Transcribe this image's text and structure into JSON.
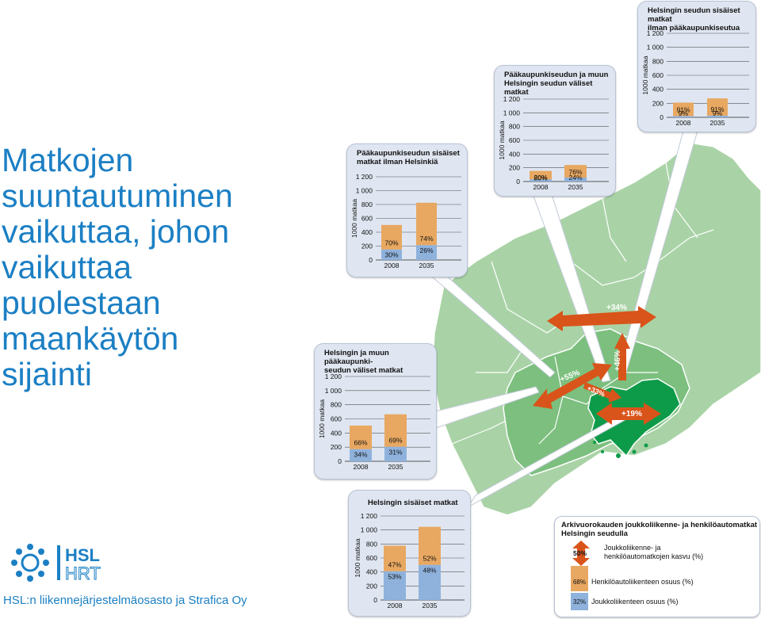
{
  "title": "Matkojen\nsuuntautuminen\nvaikuttaa, johon\nvaikuttaa\npuolestaan\nmaankäytön\nsijainti",
  "footer": "HSL:n liikennejärjestelmäosasto ja Strafica Oy",
  "logo": {
    "line1": "HSL",
    "line2": "HRT"
  },
  "colors": {
    "orange": "#e8a861",
    "blue": "#8fb2dc",
    "arrow": "#d9541a",
    "map_light": "#a9d3a6",
    "map_mid": "#7cbf7e",
    "map_dark": "#0e9b49",
    "title_blue": "#1b7fc4"
  },
  "arrows": [
    {
      "label": "+34%"
    },
    {
      "label": "+46%"
    },
    {
      "label": "+55%"
    },
    {
      "label": "+33%"
    },
    {
      "label": "+19%"
    }
  ],
  "chart_data": [
    {
      "id": "seutu-sisaiset",
      "type": "bar",
      "title": "Helsingin seudun sisäiset matkat\nilman pääkaupunkiseutua",
      "ylabel": "1000 matkaa",
      "yticks": [
        "0",
        "200",
        "400",
        "600",
        "800",
        "1 000",
        "1 200"
      ],
      "ylim": [
        0,
        1200
      ],
      "categories": [
        "2008",
        "2035"
      ],
      "totals": [
        210,
        270
      ],
      "series": [
        {
          "name": "Henkilöautoliikenteen osuus (%)",
          "share": [
            0.91,
            0.91
          ],
          "labels": [
            "91%",
            "91%"
          ]
        },
        {
          "name": "Joukkoliikenteen osuus (%)",
          "share": [
            0.09,
            0.09
          ],
          "labels": [
            "9%",
            "9%"
          ]
        }
      ]
    },
    {
      "id": "paakaupunkiseutu-muu-seutu",
      "type": "bar",
      "title": "Pääkaupunkiseudun ja muun\nHelsingin seudun väliset matkat",
      "ylabel": "1000 matkaa",
      "yticks": [
        "0",
        "200",
        "400",
        "600",
        "800",
        "1 000",
        "1 200"
      ],
      "ylim": [
        0,
        1200
      ],
      "categories": [
        "2008",
        "2035"
      ],
      "totals": [
        155,
        240
      ],
      "series": [
        {
          "name": "Henkilöautoliikenteen osuus (%)",
          "share": [
            0.8,
            0.76
          ],
          "labels": [
            "80%",
            "76%"
          ]
        },
        {
          "name": "Joukkoliikenteen osuus (%)",
          "share": [
            0.2,
            0.24
          ],
          "labels": [
            "20%",
            "24%"
          ]
        }
      ]
    },
    {
      "id": "paakaupunkiseutu-ilman-helsinkia",
      "type": "bar",
      "title": "Pääkaupunkiseudun sisäiset\nmatkat ilman Helsinkiä",
      "ylabel": "1000 matkaa",
      "yticks": [
        "0",
        "200",
        "400",
        "600",
        "800",
        "1 000",
        "1 200"
      ],
      "ylim": [
        0,
        1200
      ],
      "categories": [
        "2008",
        "2035"
      ],
      "totals": [
        505,
        825
      ],
      "series": [
        {
          "name": "Henkilöautoliikenteen osuus (%)",
          "share": [
            0.7,
            0.74
          ],
          "labels": [
            "70%",
            "74%"
          ]
        },
        {
          "name": "Joukkoliikenteen osuus (%)",
          "share": [
            0.3,
            0.26
          ],
          "labels": [
            "30%",
            "26%"
          ]
        }
      ]
    },
    {
      "id": "helsinki-muu-paakaupunkiseutu",
      "type": "bar",
      "title": "Helsingin ja muun pääkaupunki-\nseudun väliset matkat",
      "ylabel": "1000 matkaa",
      "yticks": [
        "0",
        "200",
        "400",
        "600",
        "800",
        "1 000",
        "1 200"
      ],
      "ylim": [
        0,
        1200
      ],
      "categories": [
        "2008",
        "2035"
      ],
      "totals": [
        505,
        665
      ],
      "series": [
        {
          "name": "Henkilöautoliikenteen osuus (%)",
          "share": [
            0.66,
            0.69
          ],
          "labels": [
            "66%",
            "69%"
          ]
        },
        {
          "name": "Joukkoliikenteen osuus (%)",
          "share": [
            0.34,
            0.31
          ],
          "labels": [
            "34%",
            "31%"
          ]
        }
      ]
    },
    {
      "id": "helsinki-sisaiset",
      "type": "bar",
      "title": "Helsingin sisäiset matkat",
      "ylabel": "1000 matkaa",
      "yticks": [
        "0",
        "200",
        "400",
        "600",
        "800",
        "1 000",
        "1 200"
      ],
      "ylim": [
        0,
        1200
      ],
      "categories": [
        "2008",
        "2035"
      ],
      "totals": [
        775,
        1045
      ],
      "series": [
        {
          "name": "Henkilöautoliikenteen osuus (%)",
          "share": [
            0.47,
            0.52
          ],
          "labels": [
            "47%",
            "52%"
          ]
        },
        {
          "name": "Joukkoliikenteen osuus (%)",
          "share": [
            0.53,
            0.48
          ],
          "labels": [
            "53%",
            "48%"
          ]
        }
      ]
    }
  ],
  "legend": {
    "title": "Arkivuorokauden joukkoliikenne- ja henkilöautomatkat\nHelsingin seudulla",
    "growth_swatch": "50%",
    "growth_label": "Joukkoliikenne- ja\nhenkilöautomatkojen kasvu (%)",
    "car_swatch": "68%",
    "car_label": "Henkilöautoliikenteen osuus (%)",
    "transit_swatch": "32%",
    "transit_label": "Joukkoliikenteen osuus (%)"
  }
}
